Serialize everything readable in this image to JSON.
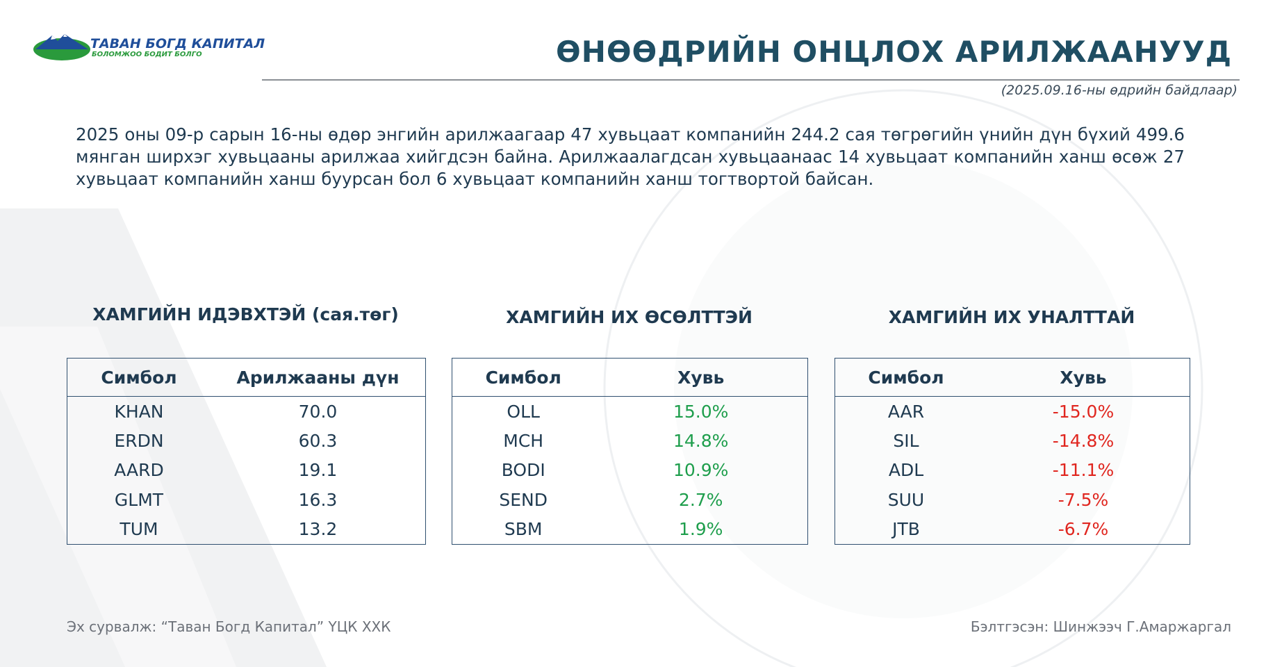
{
  "header": {
    "logo_name": "ТАВАН БОГД КАПИТАЛ",
    "logo_slogan": "БОЛОМЖОО БОДИТ БОЛГО",
    "title": "ӨНӨӨДРИЙН ОНЦЛОХ АРИЛЖААНУУД",
    "date_note": "(2025.09.16-ны өдрийн байдлаар)"
  },
  "summary": "2025 оны 09-р сарын 16-ны өдөр энгийн арилжаагаар 47 хувьцаат компанийн 244.2 сая төгрөгийн үнийн дүн бүхий 499.6 мянган ширхэг хувьцааны арилжаа хийгдсэн байна. Арилжаалагдсан хувьцаанаас 14 хувьцаат компанийн ханш өсөж 27 хувьцаат компанийн ханш буурсан бол 6 хувьцаат компанийн ханш тогтвортой байсан.",
  "tables": [
    {
      "title": "ХАМГИЙН ИДЭВХТЭЙ (сая.төг)",
      "columns": [
        "Симбол",
        "Арилжааны дүн"
      ],
      "value_color": "#1f3a50",
      "rows": [
        [
          "KHAN",
          "70.0"
        ],
        [
          "ERDN",
          "60.3"
        ],
        [
          "AARD",
          "19.1"
        ],
        [
          "GLMT",
          "16.3"
        ],
        [
          "TUM",
          "13.2"
        ]
      ]
    },
    {
      "title": "ХАМГИЙН ИХ ӨСӨЛТТЭЙ",
      "columns": [
        "Симбол",
        "Хувь"
      ],
      "value_color": "#1e9e4c",
      "rows": [
        [
          "OLL",
          "15.0%"
        ],
        [
          "MCH",
          "14.8%"
        ],
        [
          "BODI",
          "10.9%"
        ],
        [
          "SEND",
          "2.7%"
        ],
        [
          "SBM",
          "1.9%"
        ]
      ]
    },
    {
      "title": "ХАМГИЙН ИХ УНАЛТТАЙ",
      "columns": [
        "Симбол",
        "Хувь"
      ],
      "value_color": "#e0261f",
      "rows": [
        [
          "AAR",
          "-15.0%"
        ],
        [
          "SIL",
          "-14.8%"
        ],
        [
          "ADL",
          "-11.1%"
        ],
        [
          "SUU",
          "-7.5%"
        ],
        [
          "JTB",
          "-6.7%"
        ]
      ]
    }
  ],
  "footer": {
    "source": "Эх сурвалж: “Таван Богд Капитал” ҮЦК ХХК",
    "author": "Бэлтгэсэн: Шинжээч Г.Амаржаргал"
  }
}
